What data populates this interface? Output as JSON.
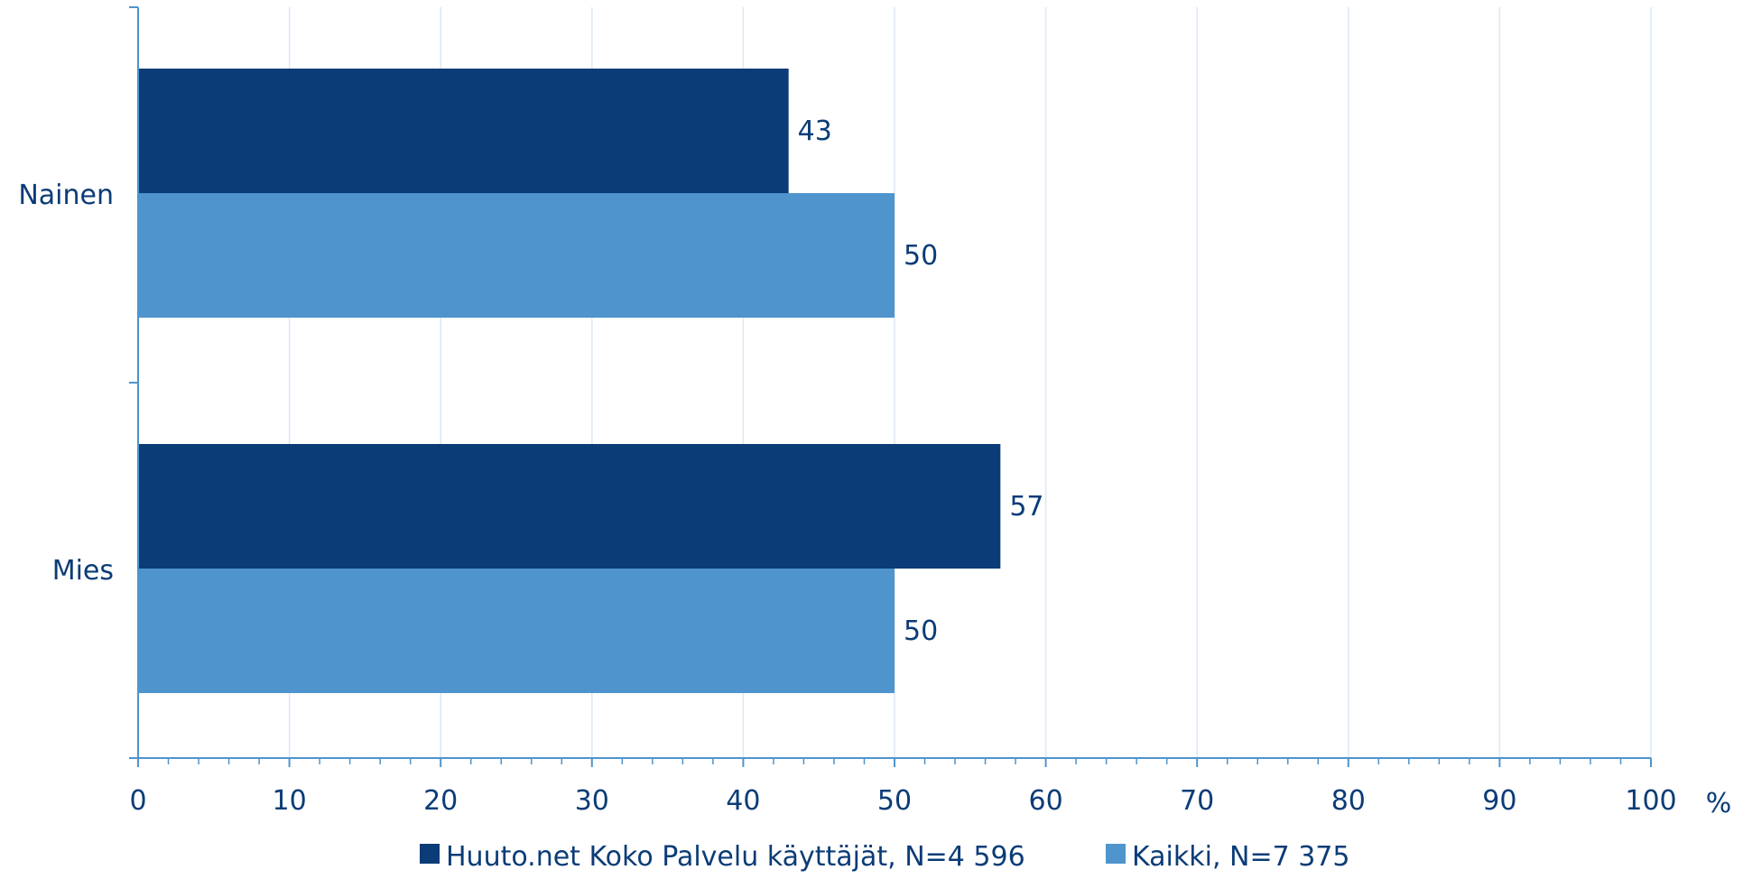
{
  "chart_data": {
    "type": "bar",
    "orientation": "horizontal",
    "categories": [
      "Nainen",
      "Mies"
    ],
    "series": [
      {
        "name": "Huuto.net Koko Palvelu käyttäjät, N=4 596",
        "values": [
          43,
          57
        ],
        "color": "#0B3C77"
      },
      {
        "name": "Kaikki, N=7 375",
        "values": [
          50,
          50
        ],
        "color": "#4F94CD"
      }
    ],
    "xlim": [
      0,
      100
    ],
    "xticks": [
      0,
      10,
      20,
      30,
      40,
      50,
      60,
      70,
      80,
      90,
      100
    ],
    "xunit": "%",
    "grid": true,
    "legend_position": "bottom",
    "data_labels": true,
    "colors": {
      "axis": "#4F94CD",
      "text": "#0B3C77",
      "grid": "#DDE8F4"
    }
  }
}
